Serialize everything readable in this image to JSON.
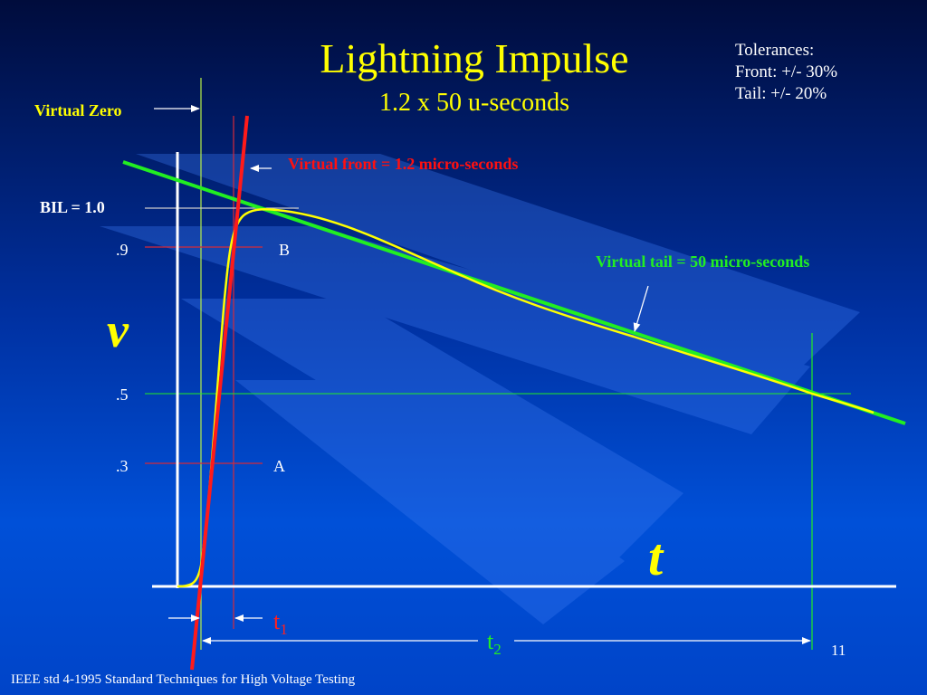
{
  "title": "Lightning Impulse",
  "subtitle": "1.2 x 50 u-seconds",
  "tolerances": {
    "heading": "Tolerances:",
    "front": "Front: +/- 30%",
    "tail": "Tail: +/- 20%"
  },
  "labels": {
    "virtual_zero": "Virtual Zero",
    "virtual_front": "Virtual front = 1.2 micro-seconds",
    "virtual_tail": "Virtual tail = 50 micro-seconds",
    "bil": "BIL = 1.0",
    "tick_09": ".9",
    "tick_05": ".5",
    "tick_03": ".3",
    "point_b": "B",
    "point_a": "A",
    "v_axis": "v",
    "t_axis": "t",
    "t1_base": "t",
    "t1_sub": "1",
    "t2_base": "t",
    "t2_sub": "2"
  },
  "colors": {
    "title": "#ffff00",
    "curve": "#ffff00",
    "front_line": "#ff1a1a",
    "tail_line": "#22ee22",
    "axes": "#ffffff"
  },
  "slide_number": "11",
  "footer": "IEEE std 4-1995  Standard Techniques for High Voltage Testing"
}
